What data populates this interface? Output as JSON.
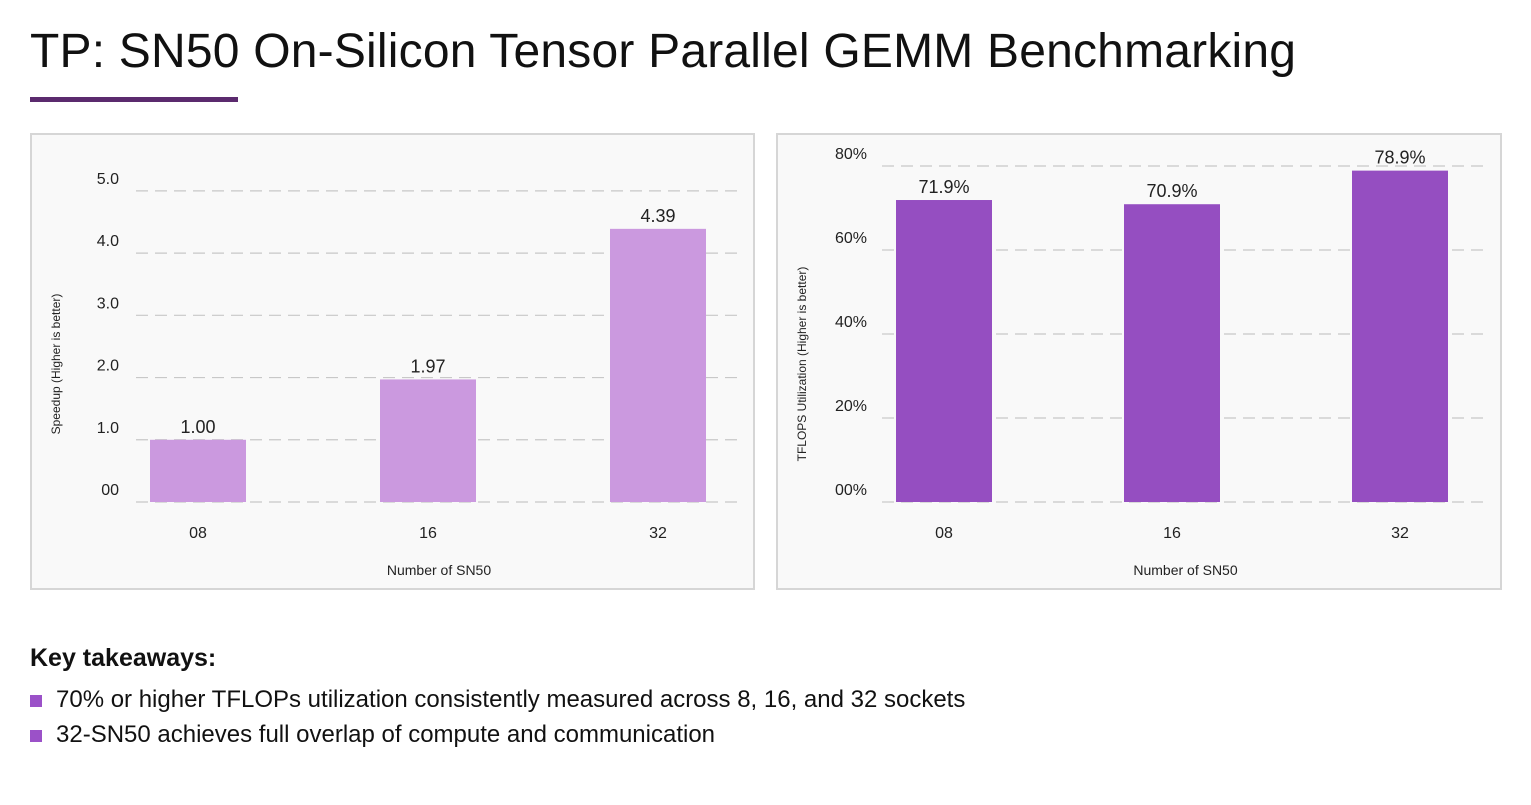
{
  "slide": {
    "title": "TP: SN50 On-Silicon Tensor Parallel GEMM Benchmarking",
    "accent_color": "#5b2a6e",
    "takeaways": {
      "heading": "Key takeaways:",
      "bullet_color": "#9b51c8",
      "items": [
        "70% or higher TFLOPs utilization consistently measured across 8, 16, and 32 sockets",
        "32-SN50 achieves full overlap of compute and communication"
      ]
    }
  },
  "chart_data": [
    {
      "type": "bar",
      "title": "",
      "categories": [
        "08",
        "16",
        "32"
      ],
      "values": [
        1.0,
        1.97,
        4.39
      ],
      "data_labels": [
        "1.00",
        "1.97",
        "4.39"
      ],
      "xlabel": "Number of SN50",
      "ylabel": "Speedup (Higher is better)",
      "ylim": [
        0,
        5.4
      ],
      "yticks": [
        0,
        1,
        2,
        3,
        4,
        5
      ],
      "ytick_labels": [
        "00",
        "1.0",
        "2.0",
        "3.0",
        "4.0",
        "5.0"
      ],
      "grid": true,
      "bar_color": "#cb99df"
    },
    {
      "type": "bar",
      "title": "",
      "categories": [
        "08",
        "16",
        "32"
      ],
      "values": [
        71.9,
        70.9,
        78.9
      ],
      "data_labels": [
        "71.9%",
        "70.9%",
        "78.9%"
      ],
      "xlabel": "Number of SN50",
      "ylabel": "TFLOPS Utilization (Higher is better)",
      "ylim": [
        0,
        80
      ],
      "yticks": [
        0,
        20,
        40,
        60,
        80
      ],
      "ytick_labels": [
        "00%",
        "20%",
        "40%",
        "60%",
        "80%"
      ],
      "grid": true,
      "bar_color": "#954ec1"
    }
  ]
}
